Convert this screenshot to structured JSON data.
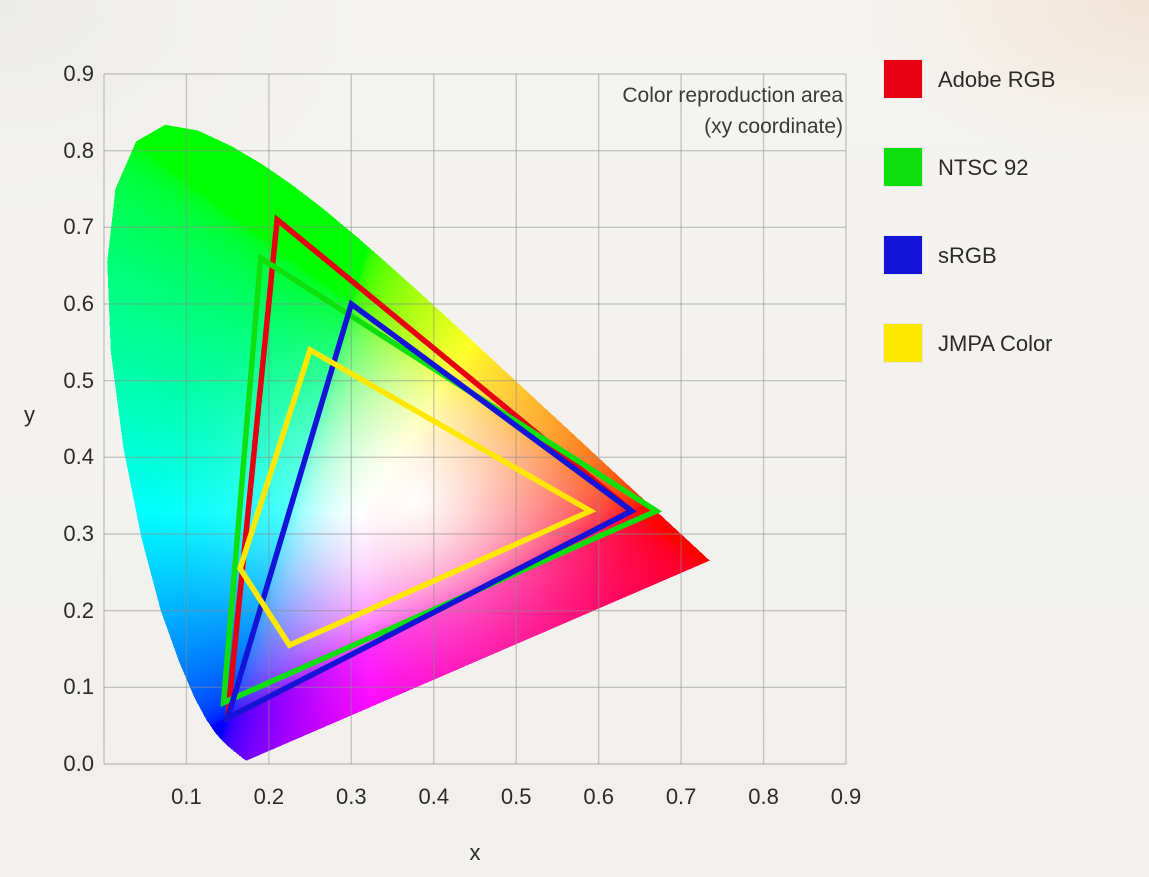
{
  "chart_data": {
    "type": "area",
    "title": "Color reproduction area",
    "subtitle": "(xy coordinate)",
    "xlabel": "x",
    "ylabel": "y",
    "xlim": [
      0,
      0.9
    ],
    "ylim": [
      0,
      0.9
    ],
    "grid": true,
    "legend_position": "right",
    "x_ticks": [
      "0.1",
      "0.2",
      "0.3",
      "0.4",
      "0.5",
      "0.6",
      "0.7",
      "0.8",
      "0.9"
    ],
    "y_ticks": [
      "0.0",
      "0.1",
      "0.2",
      "0.3",
      "0.4",
      "0.5",
      "0.6",
      "0.7",
      "0.8",
      "0.9"
    ],
    "series": [
      {
        "name": "Adobe RGB",
        "color": "#e60012",
        "vertices": [
          [
            0.64,
            0.33
          ],
          [
            0.21,
            0.71
          ],
          [
            0.15,
            0.06
          ]
        ]
      },
      {
        "name": "NTSC 92",
        "color": "#0ee00e",
        "vertices": [
          [
            0.67,
            0.33
          ],
          [
            0.19,
            0.66
          ],
          [
            0.145,
            0.08
          ]
        ]
      },
      {
        "name": "sRGB",
        "color": "#1414d8",
        "vertices": [
          [
            0.64,
            0.33
          ],
          [
            0.3,
            0.6
          ],
          [
            0.15,
            0.06
          ]
        ]
      },
      {
        "name": "JMPA Color",
        "color": "#ffe800",
        "vertices": [
          [
            0.59,
            0.33
          ],
          [
            0.25,
            0.54
          ],
          [
            0.165,
            0.255
          ],
          [
            0.225,
            0.155
          ]
        ]
      }
    ],
    "spectral_locus": [
      [
        0.1741,
        0.005
      ],
      [
        0.174,
        0.005
      ],
      [
        0.1738,
        0.0049
      ],
      [
        0.1733,
        0.0048
      ],
      [
        0.1726,
        0.0048
      ],
      [
        0.1714,
        0.0051
      ],
      [
        0.1689,
        0.0069
      ],
      [
        0.1644,
        0.0109
      ],
      [
        0.1566,
        0.0177
      ],
      [
        0.151,
        0.0227
      ],
      [
        0.144,
        0.0297
      ],
      [
        0.1355,
        0.0399
      ],
      [
        0.1241,
        0.0578
      ],
      [
        0.1096,
        0.0868
      ],
      [
        0.0913,
        0.1327
      ],
      [
        0.0687,
        0.2007
      ],
      [
        0.0454,
        0.295
      ],
      [
        0.0235,
        0.4127
      ],
      [
        0.0082,
        0.5384
      ],
      [
        0.0039,
        0.6548
      ],
      [
        0.0139,
        0.7502
      ],
      [
        0.0389,
        0.812
      ],
      [
        0.0743,
        0.8338
      ],
      [
        0.1142,
        0.8262
      ],
      [
        0.1547,
        0.8059
      ],
      [
        0.1929,
        0.7816
      ],
      [
        0.2296,
        0.7543
      ],
      [
        0.2658,
        0.7243
      ],
      [
        0.3016,
        0.6923
      ],
      [
        0.3373,
        0.6589
      ],
      [
        0.3731,
        0.6245
      ],
      [
        0.4087,
        0.5896
      ],
      [
        0.4441,
        0.5547
      ],
      [
        0.4788,
        0.5202
      ],
      [
        0.5125,
        0.4866
      ],
      [
        0.5448,
        0.4544
      ],
      [
        0.5752,
        0.4242
      ],
      [
        0.6029,
        0.3965
      ],
      [
        0.627,
        0.3725
      ],
      [
        0.6482,
        0.3514
      ],
      [
        0.6658,
        0.334
      ],
      [
        0.6801,
        0.3197
      ],
      [
        0.6915,
        0.3083
      ],
      [
        0.7006,
        0.2993
      ],
      [
        0.7079,
        0.292
      ],
      [
        0.719,
        0.2809
      ],
      [
        0.726,
        0.274
      ],
      [
        0.73,
        0.27
      ],
      [
        0.732,
        0.268
      ],
      [
        0.7334,
        0.2666
      ],
      [
        0.7344,
        0.2656
      ],
      [
        0.7347,
        0.2653
      ]
    ]
  },
  "colors": {
    "background": "#f3f2ef",
    "grid": "rgba(140,140,140,0.45)",
    "text": "#2d2b29",
    "annotation_text": "#3a3a3a"
  }
}
